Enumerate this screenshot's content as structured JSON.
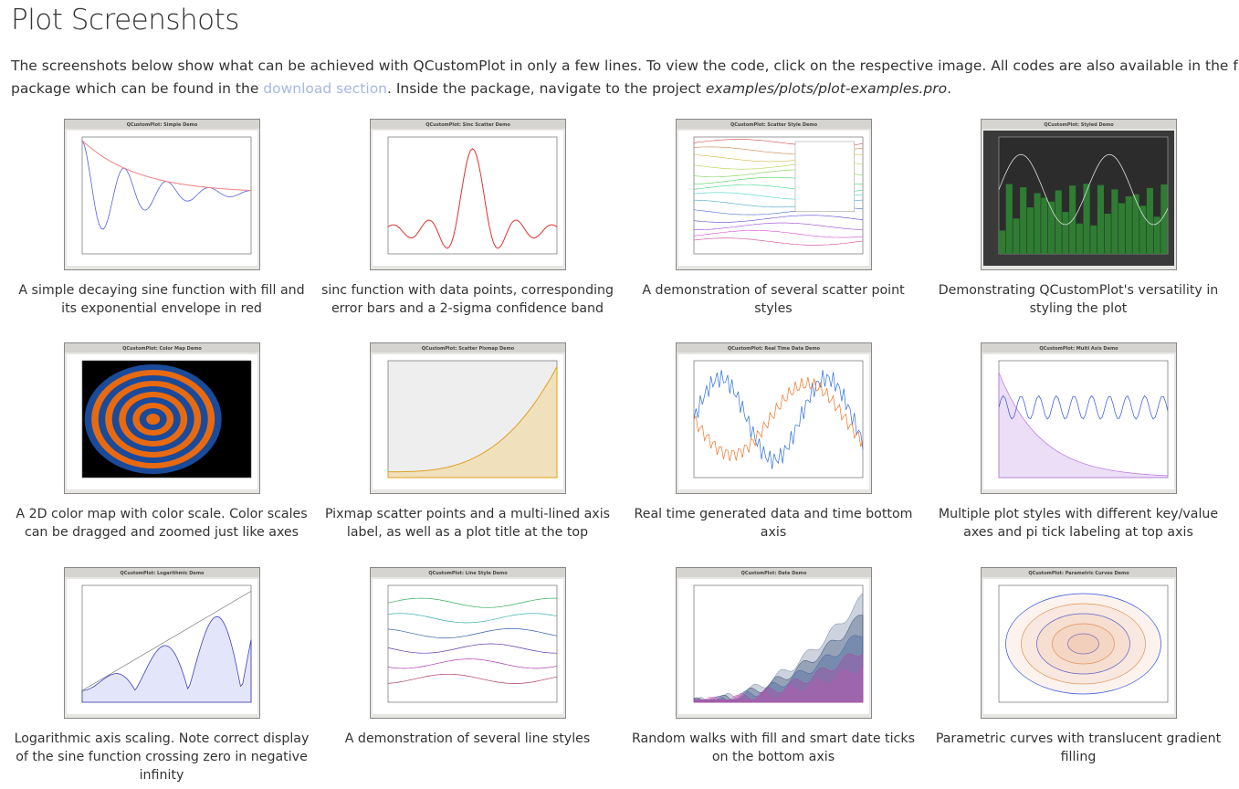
{
  "header": {
    "title": "Plot Screenshots"
  },
  "intro": {
    "text_before": "The screenshots below show what can be achieved with QCustomPlot in only a few lines. To view the code, click on the respective image. All codes are also available in the full package which can be found in the ",
    "link": "download section",
    "text_middle": ". Inside the package, navigate to the project ",
    "path": "examples/plots/plot-examples.pro",
    "text_after": "."
  },
  "items": [
    {
      "window_title": "QCustomPlot: Simple Demo",
      "caption": "A simple decaying sine function with fill and its exponential envelope in red"
    },
    {
      "window_title": "QCustomPlot: Sinc Scatter Demo",
      "caption": "sinc function with data points, corresponding error bars and a 2-sigma confidence band"
    },
    {
      "window_title": "QCustomPlot: Scatter Style Demo",
      "caption": "A demonstration of several scatter point styles"
    },
    {
      "window_title": "QCustomPlot: Styled Demo",
      "caption": "Demonstrating QCustomPlot's versatility in styling the plot"
    },
    {
      "window_title": "QCustomPlot: Color Map Demo",
      "caption": "A 2D color map with color scale. Color scales can be dragged and zoomed just like axes"
    },
    {
      "window_title": "QCustomPlot: Scatter Pixmap Demo",
      "caption": "Pixmap scatter points and a multi-lined axis label, as well as a plot title at the top"
    },
    {
      "window_title": "QCustomPlot: Real Time Data Demo",
      "caption": "Real time generated data and time bottom axis"
    },
    {
      "window_title": "QCustomPlot: Multi Axis Demo",
      "caption": "Multiple plot styles with different key/value axes and pi tick labeling at top axis"
    },
    {
      "window_title": "QCustomPlot: Logarithmic Demo",
      "caption": "Logarithmic axis scaling. Note correct display of the sine function crossing zero in negative infinity"
    },
    {
      "window_title": "QCustomPlot: Line Style Demo",
      "caption": "A demonstration of several line styles"
    },
    {
      "window_title": "QCustomPlot: Date Demo",
      "caption": "Random walks with fill and smart date ticks on the bottom axis"
    },
    {
      "window_title": "QCustomPlot: Parametric Curves Demo",
      "caption": "Parametric curves with translucent gradient filling"
    }
  ]
}
